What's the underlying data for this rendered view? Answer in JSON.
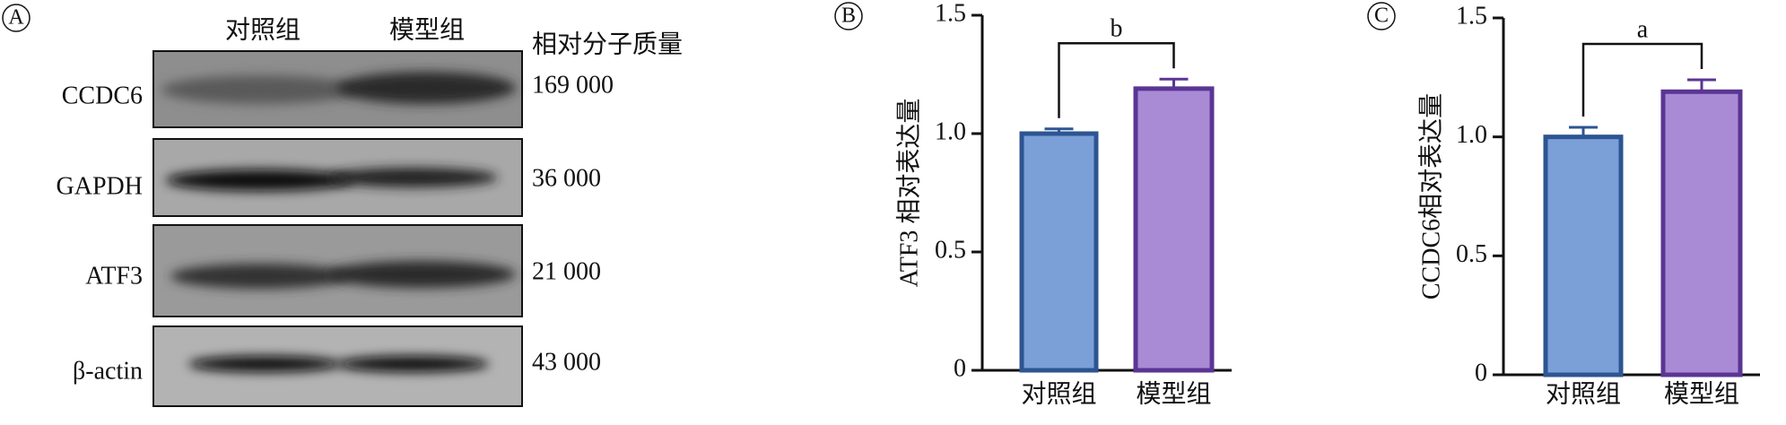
{
  "panel_a": {
    "letter": "A",
    "columns": [
      "对照组",
      "模型组"
    ],
    "mw_header": "相对分子质量",
    "rows": [
      {
        "label": "CCDC6",
        "mw": "169 000"
      },
      {
        "label": "GAPDH",
        "mw": "36 000"
      },
      {
        "label": "ATF3",
        "mw": "21 000"
      },
      {
        "label": "β-actin",
        "mw": "43 000"
      }
    ]
  },
  "chart_data": [
    {
      "type": "bar",
      "letter": "B",
      "y_label": "ATF3 相对表达量",
      "categories": [
        "对照组",
        "模型组"
      ],
      "values": [
        1.0,
        1.19
      ],
      "errors": [
        0.02,
        0.04
      ],
      "colors": [
        "#7ba0d8",
        "#a98bd5"
      ],
      "edge_colors": [
        "#2d5592",
        "#5b3594"
      ],
      "annotation": "b",
      "ylim": [
        0,
        1.5
      ],
      "yticks": [
        0,
        0.5,
        {
          "value": 1,
          "label": "1.0"
        },
        1.5
      ]
    },
    {
      "type": "bar",
      "letter": "C",
      "y_label": "CCDC6相对表达量",
      "categories": [
        "对照组",
        "模型组"
      ],
      "values": [
        1.0,
        1.19
      ],
      "errors": [
        0.04,
        0.05
      ],
      "colors": [
        "#7ba0d8",
        "#a98bd5"
      ],
      "edge_colors": [
        "#2d5592",
        "#5b3594"
      ],
      "annotation": "a",
      "ylim": [
        0,
        1.5
      ],
      "yticks": [
        0,
        0.5,
        {
          "value": 1,
          "label": "1.0"
        },
        1.5
      ]
    }
  ]
}
